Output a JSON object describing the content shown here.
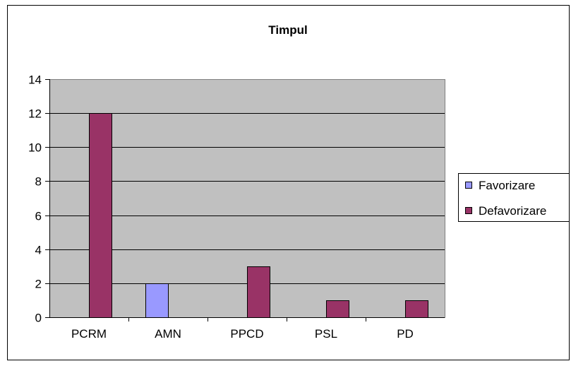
{
  "chart_data": {
    "type": "bar",
    "title": "Timpul",
    "xlabel": "",
    "ylabel": "",
    "categories": [
      "PCRM",
      "AMN",
      "PPCD",
      "PSL",
      "PD"
    ],
    "series": [
      {
        "name": "Favorizare",
        "color": "#9999FF",
        "values": [
          0,
          2,
          0,
          0,
          0
        ]
      },
      {
        "name": "Defavorizare",
        "color": "#993366",
        "values": [
          12,
          0,
          3,
          1,
          1
        ]
      }
    ],
    "ylim": [
      0,
      14
    ],
    "yticks": [
      0,
      2,
      4,
      6,
      8,
      10,
      12,
      14
    ],
    "grid": true,
    "plot_background": "#C0C0C0",
    "legend_position": "right"
  }
}
